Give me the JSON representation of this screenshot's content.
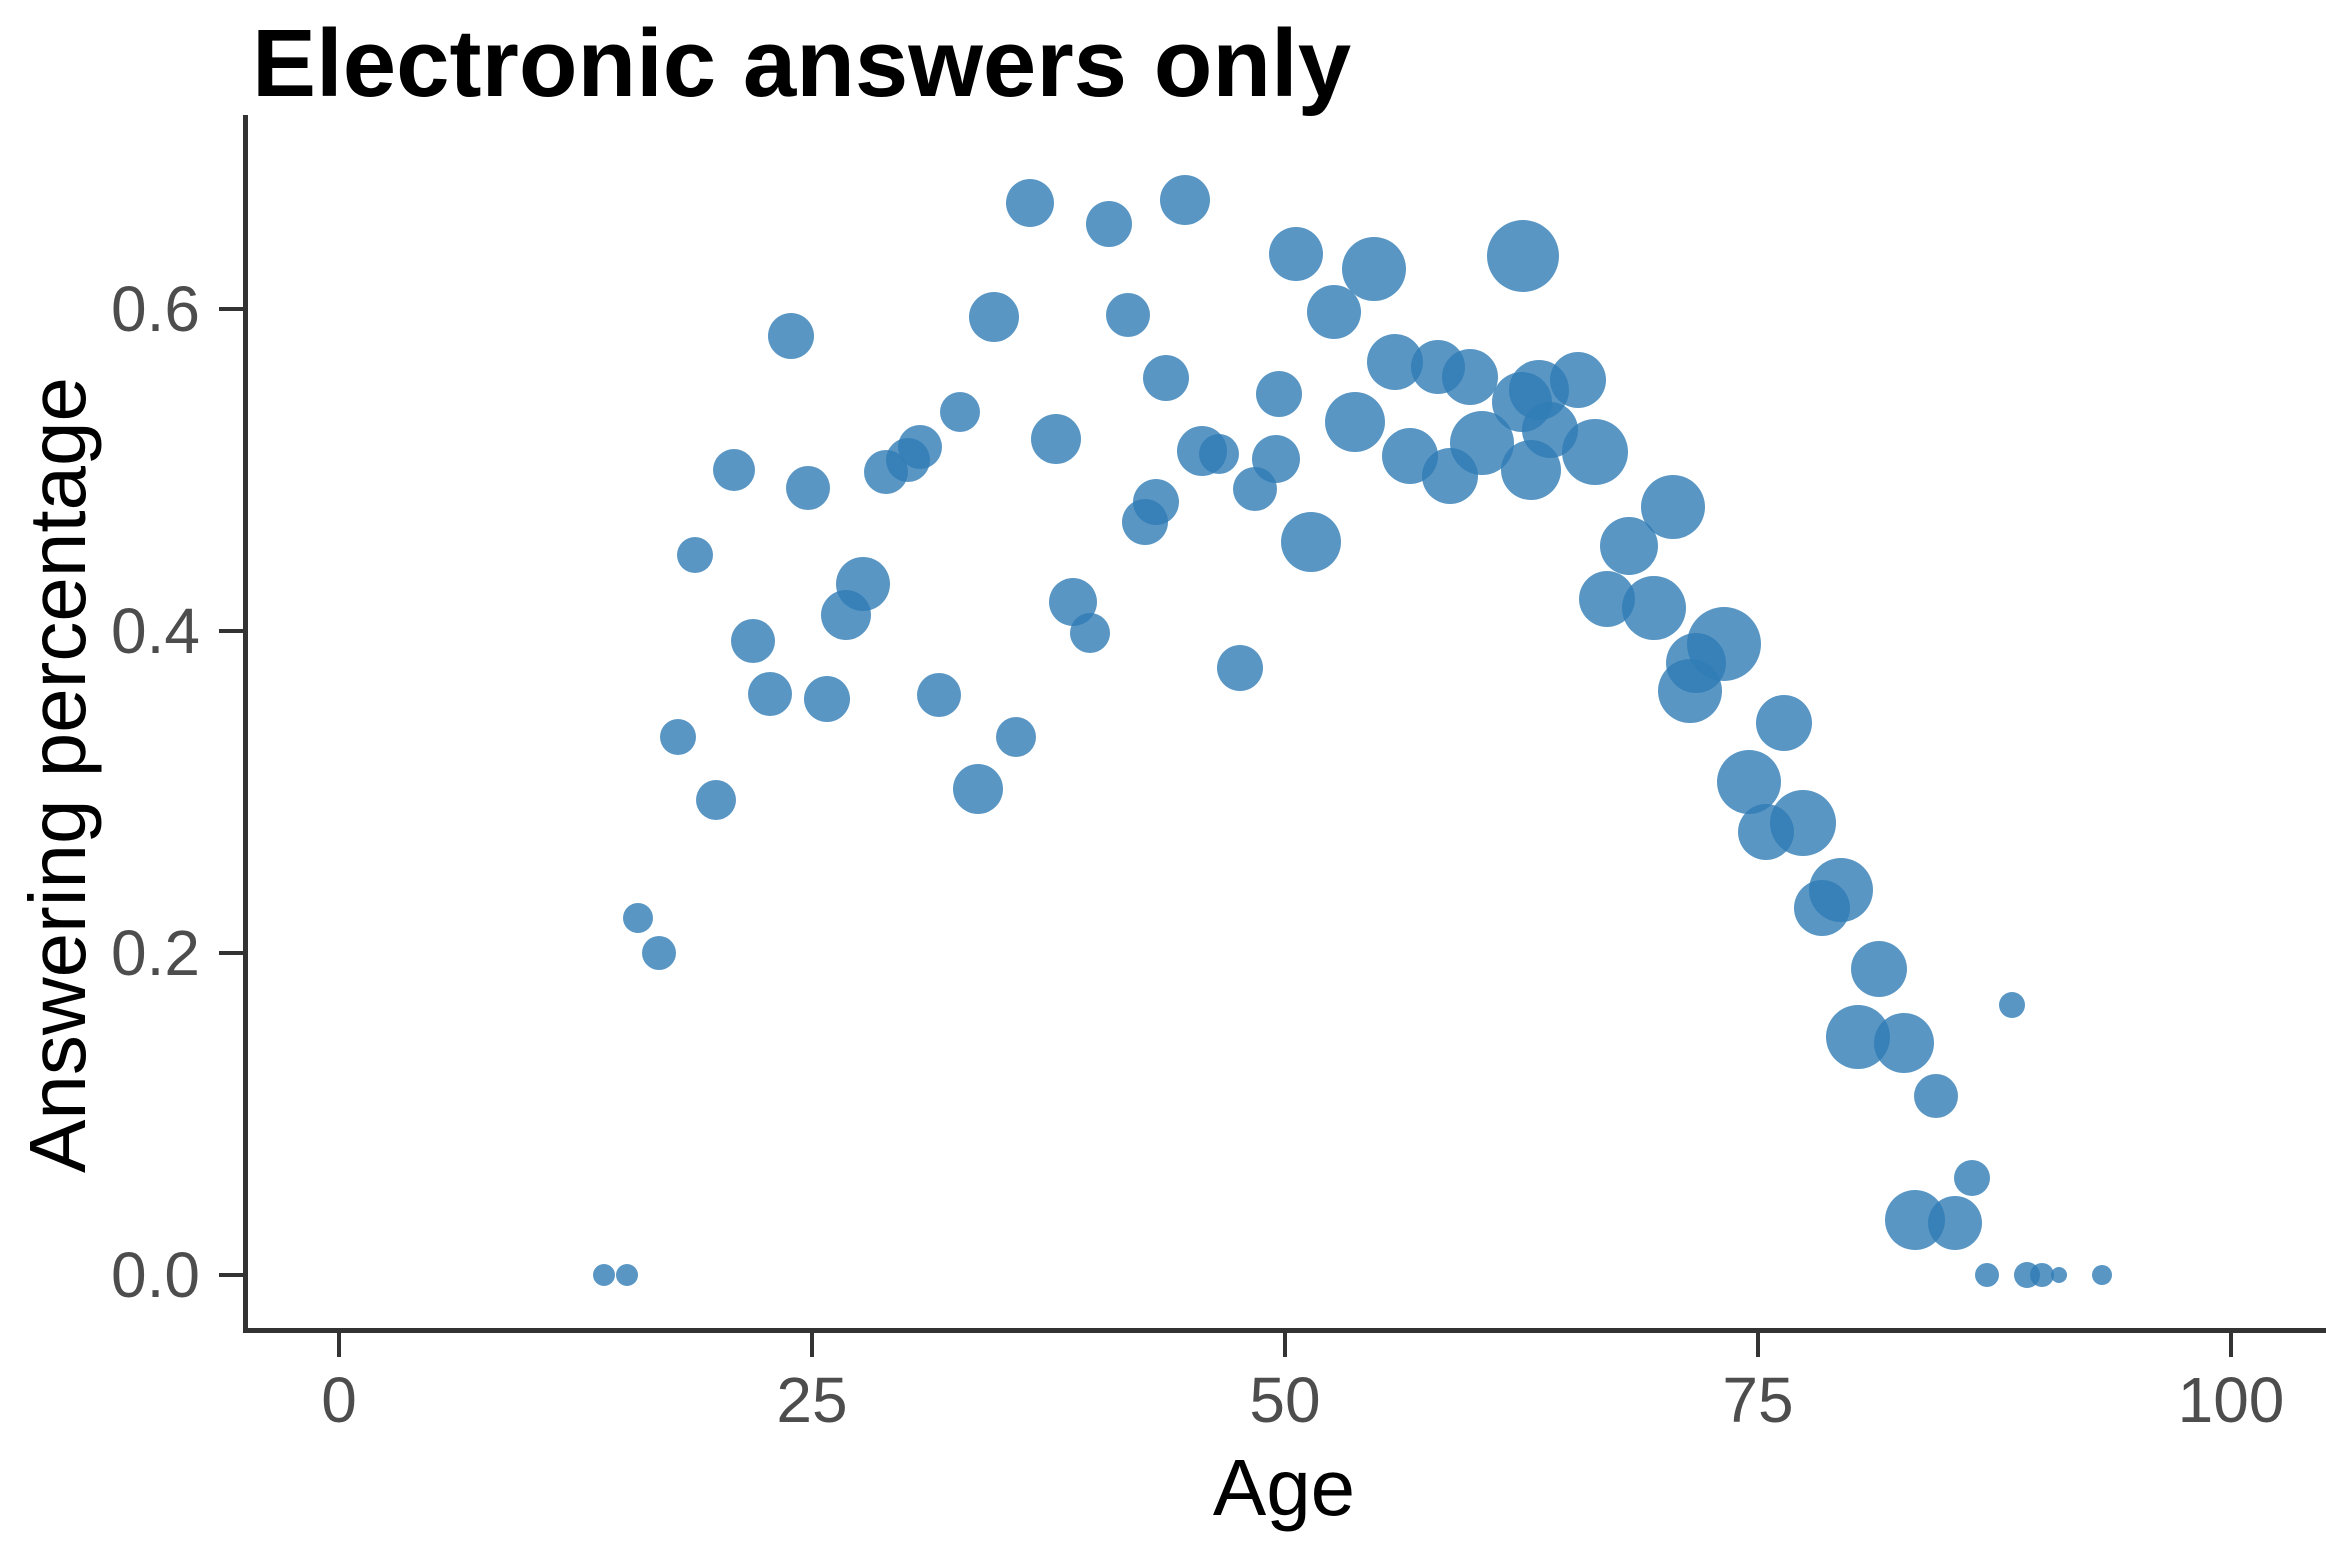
{
  "chart_data": {
    "type": "scatter",
    "subtype": "bubble",
    "title": "Electronic answers only",
    "xlabel": "Age",
    "ylabel": "Answering percentage",
    "xlim": [
      -5.1,
      105.1
    ],
    "ylim": [
      -0.033,
      0.72
    ],
    "x_ticks": [
      "0",
      "25",
      "50",
      "75",
      "100"
    ],
    "y_ticks": [
      "0.0",
      "0.2",
      "0.4",
      "0.6"
    ],
    "grid": false,
    "legend": "none",
    "point_color": "#2f7cb5",
    "point_opacity": 0.8,
    "size_encoding": "bubble area varies with group size (no legend shown)",
    "point_columns": [
      "age",
      "answering_pct",
      "radius_px"
    ],
    "points": [
      [
        14.0,
        0.0,
        11
      ],
      [
        15.2,
        0.0,
        11
      ],
      [
        15.8,
        0.222,
        15
      ],
      [
        16.9,
        0.2,
        17
      ],
      [
        17.9,
        0.334,
        18
      ],
      [
        18.8,
        0.447,
        18
      ],
      [
        19.9,
        0.295,
        20
      ],
      [
        20.9,
        0.5,
        21
      ],
      [
        21.9,
        0.394,
        22
      ],
      [
        22.8,
        0.361,
        22
      ],
      [
        23.9,
        0.583,
        23
      ],
      [
        24.8,
        0.489,
        22
      ],
      [
        25.8,
        0.358,
        23
      ],
      [
        26.8,
        0.41,
        25
      ],
      [
        27.7,
        0.429,
        27
      ],
      [
        28.9,
        0.499,
        22
      ],
      [
        30.1,
        0.506,
        22
      ],
      [
        30.7,
        0.514,
        22
      ],
      [
        31.7,
        0.36,
        22
      ],
      [
        32.8,
        0.536,
        20
      ],
      [
        33.8,
        0.302,
        25
      ],
      [
        34.6,
        0.595,
        25
      ],
      [
        35.8,
        0.334,
        20
      ],
      [
        36.5,
        0.666,
        24
      ],
      [
        37.9,
        0.519,
        25
      ],
      [
        38.8,
        0.418,
        24
      ],
      [
        39.7,
        0.399,
        20
      ],
      [
        40.7,
        0.653,
        23
      ],
      [
        41.7,
        0.596,
        22
      ],
      [
        42.6,
        0.468,
        23
      ],
      [
        43.2,
        0.48,
        23
      ],
      [
        43.7,
        0.557,
        23
      ],
      [
        44.7,
        0.668,
        25
      ],
      [
        45.6,
        0.512,
        25
      ],
      [
        46.5,
        0.51,
        20
      ],
      [
        47.6,
        0.377,
        23
      ],
      [
        48.4,
        0.488,
        22
      ],
      [
        49.5,
        0.507,
        24
      ],
      [
        49.7,
        0.547,
        23
      ],
      [
        50.6,
        0.634,
        27
      ],
      [
        51.4,
        0.455,
        30
      ],
      [
        52.6,
        0.598,
        27
      ],
      [
        53.7,
        0.53,
        30
      ],
      [
        54.7,
        0.625,
        32
      ],
      [
        55.8,
        0.567,
        28
      ],
      [
        56.6,
        0.509,
        28
      ],
      [
        58.1,
        0.564,
        27
      ],
      [
        58.7,
        0.496,
        28
      ],
      [
        59.8,
        0.558,
        28
      ],
      [
        60.4,
        0.517,
        32
      ],
      [
        62.5,
        0.542,
        30
      ],
      [
        62.6,
        0.633,
        36
      ],
      [
        63.0,
        0.5,
        30
      ],
      [
        63.4,
        0.55,
        30
      ],
      [
        64.0,
        0.525,
        28
      ],
      [
        65.5,
        0.556,
        28
      ],
      [
        66.4,
        0.511,
        33
      ],
      [
        67.0,
        0.42,
        28
      ],
      [
        68.2,
        0.453,
        29
      ],
      [
        69.5,
        0.414,
        32
      ],
      [
        70.5,
        0.477,
        32
      ],
      [
        71.4,
        0.363,
        32
      ],
      [
        71.7,
        0.38,
        30
      ],
      [
        73.2,
        0.392,
        37
      ],
      [
        74.5,
        0.306,
        32
      ],
      [
        75.4,
        0.275,
        28
      ],
      [
        76.4,
        0.343,
        28
      ],
      [
        77.4,
        0.281,
        33
      ],
      [
        78.4,
        0.228,
        28
      ],
      [
        79.4,
        0.239,
        32
      ],
      [
        80.3,
        0.148,
        32
      ],
      [
        81.4,
        0.19,
        28
      ],
      [
        82.7,
        0.144,
        30
      ],
      [
        83.3,
        0.034,
        30
      ],
      [
        84.4,
        0.111,
        22
      ],
      [
        85.4,
        0.032,
        27
      ],
      [
        86.3,
        0.06,
        18
      ],
      [
        87.1,
        0.0,
        12
      ],
      [
        88.4,
        0.168,
        13
      ],
      [
        89.2,
        0.0,
        13
      ],
      [
        90.0,
        0.0,
        12
      ],
      [
        90.9,
        0.0,
        8
      ],
      [
        93.2,
        0.0,
        10
      ]
    ]
  }
}
